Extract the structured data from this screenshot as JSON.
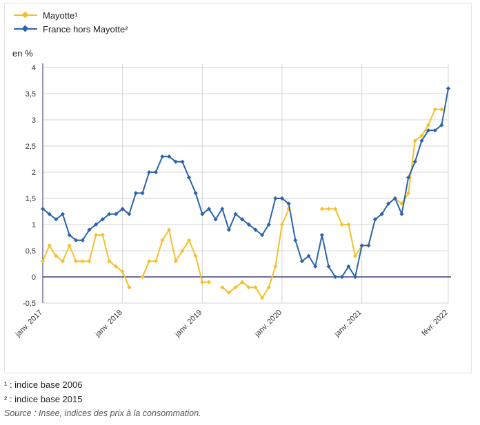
{
  "chart_data": {
    "type": "line",
    "ylabel": "en %",
    "ylim": [
      -0.5,
      4
    ],
    "yticks": [
      "4",
      "3,5",
      "3",
      "2,5",
      "2",
      "1,5",
      "1",
      "0,5",
      "0",
      "-0,5"
    ],
    "ytick_values": [
      4,
      3.5,
      3,
      2.5,
      2,
      1.5,
      1,
      0.5,
      0,
      -0.5
    ],
    "x_start": "2017-01",
    "x_end": "2022-02",
    "xticks": [
      {
        "label": "janv. 2017",
        "month": "2017-01"
      },
      {
        "label": "janv. 2018",
        "month": "2018-01"
      },
      {
        "label": "janv. 2019",
        "month": "2019-01"
      },
      {
        "label": "janv. 2020",
        "month": "2020-01"
      },
      {
        "label": "janv. 2021",
        "month": "2021-01"
      },
      {
        "label": "févr. 2022",
        "month": "2022-02"
      }
    ],
    "grid": true,
    "legend_position": "top-left",
    "series": [
      {
        "name": "Mayotte¹",
        "color": "#f5c02a",
        "values": [
          0.3,
          0.6,
          0.4,
          0.3,
          0.6,
          0.3,
          0.3,
          0.3,
          0.8,
          0.8,
          0.3,
          0.2,
          0.1,
          -0.2,
          null,
          0.0,
          0.3,
          0.3,
          0.7,
          0.9,
          0.3,
          0.5,
          0.7,
          0.4,
          -0.1,
          -0.1,
          null,
          -0.2,
          -0.3,
          -0.2,
          -0.1,
          -0.2,
          -0.2,
          -0.4,
          -0.2,
          0.2,
          1.0,
          1.3,
          null,
          null,
          null,
          null,
          1.3,
          1.3,
          1.3,
          1.0,
          1.0,
          0.4,
          0.6,
          0.6,
          1.1,
          1.2,
          1.4,
          1.5,
          1.4,
          1.6,
          2.6,
          2.7,
          2.9,
          3.2,
          3.2,
          null
        ]
      },
      {
        "name": "France hors Mayotte²",
        "color": "#2b63ad",
        "values": [
          1.3,
          1.2,
          1.1,
          1.2,
          0.8,
          0.7,
          0.7,
          0.9,
          1.0,
          1.1,
          1.2,
          1.2,
          1.3,
          1.2,
          1.6,
          1.6,
          2.0,
          2.0,
          2.3,
          2.3,
          2.2,
          2.2,
          1.9,
          1.6,
          1.2,
          1.3,
          1.1,
          1.3,
          0.9,
          1.2,
          1.1,
          1.0,
          0.9,
          0.8,
          1.0,
          1.5,
          1.5,
          1.4,
          0.7,
          0.3,
          0.4,
          0.2,
          0.8,
          0.2,
          0.0,
          0.0,
          0.2,
          0.0,
          0.6,
          0.6,
          1.1,
          1.2,
          1.4,
          1.5,
          1.2,
          1.9,
          2.2,
          2.6,
          2.8,
          2.8,
          2.9,
          3.6
        ]
      }
    ]
  },
  "notes": {
    "note1": "¹ : indice base 2006",
    "note2": "² : indice base 2015",
    "source": "Source : Insee, indices des prix à la consommation."
  }
}
